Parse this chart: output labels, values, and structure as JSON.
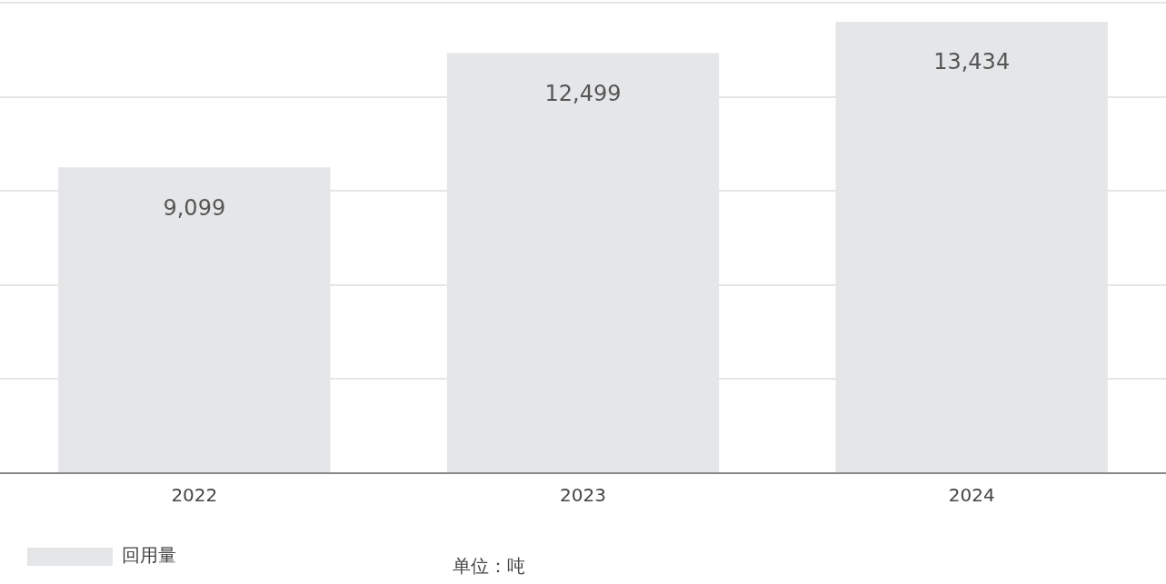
{
  "chart_data": {
    "type": "bar",
    "categories": [
      "2022",
      "2023",
      "2024"
    ],
    "series": [
      {
        "name": "回用量",
        "color": "#e5e6e8",
        "values": [
          9099,
          12499,
          13434
        ],
        "value_labels": [
          "9,099",
          "12,499",
          "13,434"
        ]
      }
    ],
    "tick_labels": "x",
    "grid": "y",
    "legend": "bottom left",
    "annotations": [
      "单位：吨"
    ]
  }
}
